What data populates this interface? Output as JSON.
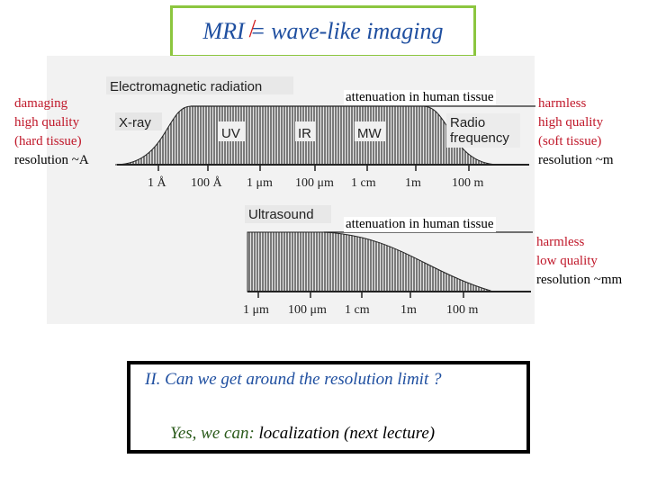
{
  "title": {
    "left": "MRI",
    "neq": "=",
    "right": "wave-like imaging"
  },
  "left_notes": {
    "line1": "damaging",
    "line2": "high quality",
    "line3": "(hard tissue)",
    "line4": "resolution ~A"
  },
  "em_panel": {
    "heading": "Electromagnetic radiation",
    "attenuation": "attenuation in human tissue",
    "band_labels": [
      "X-ray",
      "UV",
      "IR",
      "MW",
      "Radio",
      "frequency"
    ],
    "ticks": [
      "1 Å",
      "100 Å",
      "1 μm",
      "100 μm",
      "1 cm",
      "1m",
      "100 m"
    ]
  },
  "em_right_notes": {
    "line1": "harmless",
    "line2": "high quality",
    "line3": "(soft tissue)",
    "line4": "resolution ~m"
  },
  "us_panel": {
    "heading": "Ultrasound",
    "attenuation": "attenuation in human tissue",
    "ticks": [
      "1 μm",
      "100 μm",
      "1 cm",
      "1m",
      "100 m"
    ]
  },
  "us_right_notes": {
    "line1": "harmless",
    "line2": "low quality",
    "line3": "resolution ~mm"
  },
  "question": {
    "line1": "II. Can we get around the resolution limit ?",
    "line2_prefix": "Yes, we can: ",
    "line2_emph": "localization (next lecture)"
  },
  "colors": {
    "title_border": "#8cc63f",
    "title_text": "#1f4fa0",
    "note_red": "#c0182a",
    "slash": "#d42020"
  }
}
